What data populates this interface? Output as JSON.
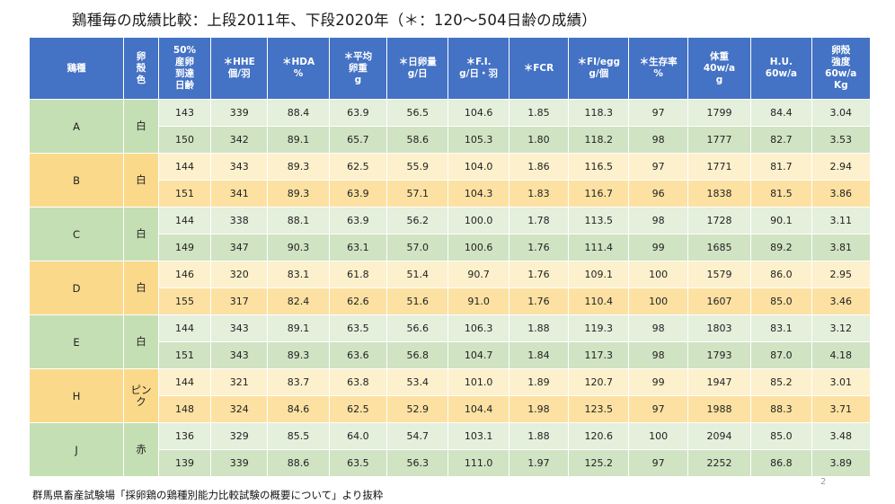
{
  "title": "鶏種毎の成績比較：上段2011年、下段2020年（＊：120〜504日齢の成績）",
  "headers": [
    "鶏種",
    "卵\n殻\n色",
    "50%\n産卵\n到達\n日齢",
    "＊HHE\n個/羽",
    "＊HDA\n%",
    "＊平均\n卵重\ng",
    "＊日卵量\ng/日",
    "＊F.I.\ng/日・羽",
    "＊FCR",
    "＊FI/egg\ng/個",
    "＊生存率\n%",
    "体重\n40w/a\ng",
    "H.U.\n60w/a",
    "卵殻\n強度\n60w/a\nKg"
  ],
  "groups": [
    {
      "breed": "A",
      "color": "白",
      "rows": [
        [
          "143",
          "339",
          "88.4",
          "63.9",
          "56.5",
          "104.6",
          "1.85",
          "118.3",
          "97",
          "1799",
          "84.4",
          "3.04"
        ],
        [
          "150",
          "342",
          "89.1",
          "65.7",
          "58.6",
          "105.3",
          "1.80",
          "118.2",
          "98",
          "1777",
          "82.7",
          "3.53"
        ]
      ]
    },
    {
      "breed": "B",
      "color": "白",
      "rows": [
        [
          "144",
          "343",
          "89.3",
          "62.5",
          "55.9",
          "104.0",
          "1.86",
          "116.5",
          "97",
          "1771",
          "81.7",
          "2.94"
        ],
        [
          "151",
          "341",
          "89.3",
          "63.9",
          "57.1",
          "104.3",
          "1.83",
          "116.7",
          "96",
          "1838",
          "81.5",
          "3.86"
        ]
      ]
    },
    {
      "breed": "C",
      "color": "白",
      "rows": [
        [
          "144",
          "338",
          "88.1",
          "63.9",
          "56.2",
          "100.0",
          "1.78",
          "113.5",
          "98",
          "1728",
          "90.1",
          "3.11"
        ],
        [
          "149",
          "347",
          "90.3",
          "63.1",
          "57.0",
          "100.6",
          "1.76",
          "111.4",
          "99",
          "1685",
          "89.2",
          "3.81"
        ]
      ]
    },
    {
      "breed": "D",
      "color": "白",
      "rows": [
        [
          "146",
          "320",
          "83.1",
          "61.8",
          "51.4",
          "90.7",
          "1.76",
          "109.1",
          "100",
          "1579",
          "86.0",
          "2.95"
        ],
        [
          "155",
          "317",
          "82.4",
          "62.6",
          "51.6",
          "91.0",
          "1.76",
          "110.4",
          "100",
          "1607",
          "85.0",
          "3.46"
        ]
      ]
    },
    {
      "breed": "E",
      "color": "白",
      "rows": [
        [
          "144",
          "343",
          "89.1",
          "63.5",
          "56.6",
          "106.3",
          "1.88",
          "119.3",
          "98",
          "1803",
          "83.1",
          "3.12"
        ],
        [
          "151",
          "343",
          "89.3",
          "63.6",
          "56.8",
          "104.7",
          "1.84",
          "117.3",
          "98",
          "1793",
          "87.0",
          "4.18"
        ]
      ]
    },
    {
      "breed": "H",
      "color": "ピン\nク",
      "rows": [
        [
          "144",
          "321",
          "83.7",
          "63.8",
          "53.4",
          "101.0",
          "1.89",
          "120.7",
          "99",
          "1947",
          "85.2",
          "3.01"
        ],
        [
          "148",
          "324",
          "84.6",
          "62.5",
          "52.9",
          "104.4",
          "1.98",
          "123.5",
          "97",
          "1988",
          "88.3",
          "3.71"
        ]
      ]
    },
    {
      "breed": "J",
      "color": "赤",
      "rows": [
        [
          "136",
          "329",
          "85.5",
          "64.0",
          "54.7",
          "103.1",
          "1.88",
          "120.6",
          "100",
          "2094",
          "85.0",
          "3.48"
        ],
        [
          "139",
          "339",
          "88.6",
          "63.5",
          "56.3",
          "111.0",
          "1.97",
          "125.2",
          "97",
          "2252",
          "86.8",
          "3.89"
        ]
      ]
    }
  ],
  "source": "群馬県畜産試験場「採卵鶏の鶏種別能力比較試験の概要について」より抜粋",
  "page_number": "2",
  "colors": {
    "header_bg": "#4472c4",
    "green_label": "#c5dfb4",
    "green_dark": "#d0e3c3",
    "green_light": "#e4efdc",
    "yellow_label": "#fbd98b",
    "yellow_dark": "#fce1a2",
    "yellow_light": "#fdf0cc"
  }
}
